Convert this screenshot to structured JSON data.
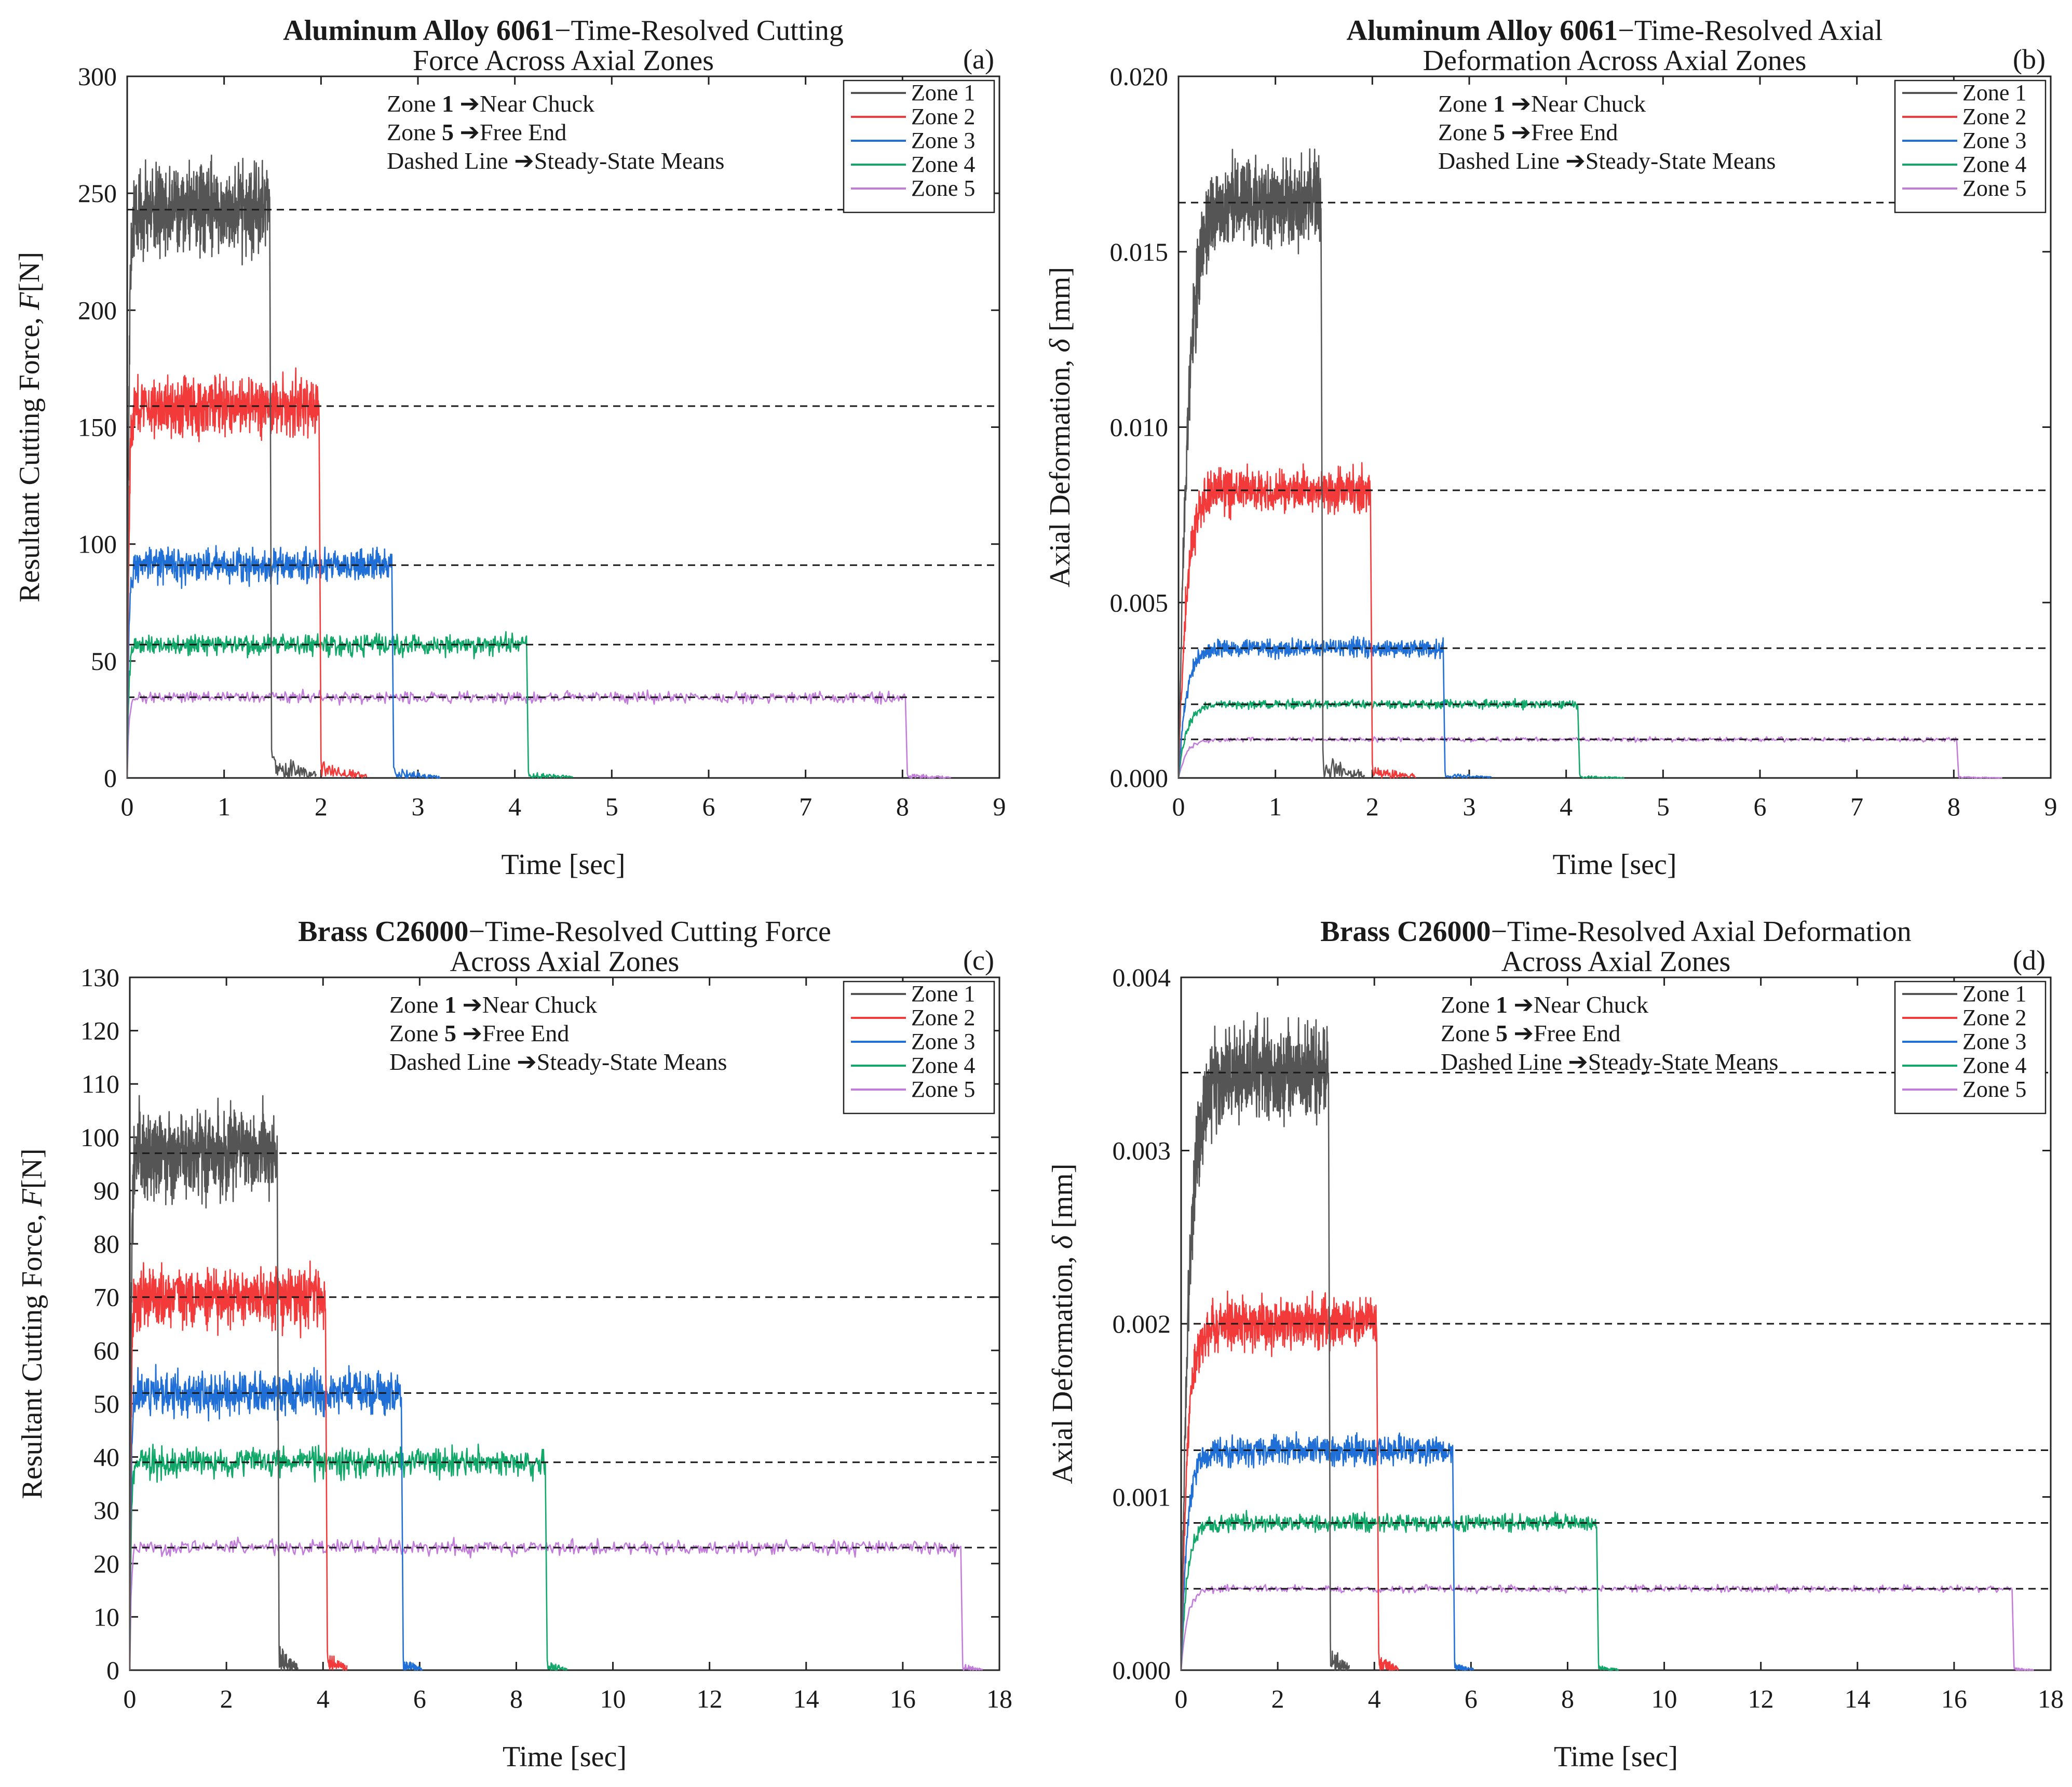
{
  "colors": {
    "zone1": "#555555",
    "zone2": "#f23a3a",
    "zone3": "#1f6fd6",
    "zone4": "#12a86a",
    "zone5": "#c27ddb",
    "dashed": "#1a1a1a"
  },
  "chart_data": [
    {
      "id": "a",
      "type": "line",
      "panel_label": "(a)",
      "title_bold": "Aluminum Alloy 6061",
      "title_rest_line1": "−Time-Resolved Cutting",
      "title_line2": "Force Across Axial Zones",
      "xlabel": "Time [sec]",
      "ylabel_prefix": "Resultant Cutting Force, ",
      "ylabel_symbol": "F",
      "ylabel_suffix": "[N]",
      "xlim": [
        0,
        9
      ],
      "ylim": [
        0,
        300
      ],
      "xticks": [
        0,
        1,
        2,
        3,
        4,
        5,
        6,
        7,
        8,
        9
      ],
      "yticks": [
        "0",
        "50",
        "100",
        "150",
        "200",
        "250",
        "300"
      ],
      "ytick_values": [
        0,
        50,
        100,
        150,
        200,
        250,
        300
      ],
      "annotations": [
        {
          "pre": "Zone ",
          "bold": "1",
          "post": " ➔Near Chuck"
        },
        {
          "pre": "Zone ",
          "bold": "5",
          "post": " ➔Free End"
        },
        {
          "pre": "Dashed Line ",
          "bold": "",
          "post": "➔Steady-State Means"
        }
      ],
      "legend": [
        "Zone 1",
        "Zone 2",
        "Zone 3",
        "Zone 4",
        "Zone 5"
      ],
      "legend_position": "top-right",
      "series": [
        {
          "name": "Zone 1",
          "mean": 243,
          "end_time": 1.47,
          "tail_end": 1.95,
          "noise": 9,
          "tail": 8,
          "rise": 0.05
        },
        {
          "name": "Zone 2",
          "mean": 159,
          "end_time": 1.98,
          "tail_end": 2.47,
          "noise": 6,
          "tail": 5,
          "rise": 0.05
        },
        {
          "name": "Zone 3",
          "mean": 91,
          "end_time": 2.73,
          "tail_end": 3.23,
          "noise": 3.5,
          "tail": 3,
          "rise": 0.05
        },
        {
          "name": "Zone 4",
          "mean": 57,
          "end_time": 4.12,
          "tail_end": 4.6,
          "noise": 2.2,
          "tail": 2,
          "rise": 0.05
        },
        {
          "name": "Zone 5",
          "mean": 34.5,
          "end_time": 8.03,
          "tail_end": 8.5,
          "noise": 1.2,
          "tail": 1.5,
          "rise": 0.05
        }
      ]
    },
    {
      "id": "b",
      "type": "line",
      "panel_label": "(b)",
      "title_bold": "Aluminum Alloy 6061",
      "title_rest_line1": "−Time-Resolved Axial",
      "title_line2": "Deformation Across Axial Zones",
      "xlabel": "Time [sec]",
      "ylabel_prefix": "Axial Deformation, ",
      "ylabel_symbol": "δ",
      "ylabel_suffix": " [mm]",
      "xlim": [
        0,
        9
      ],
      "ylim": [
        0,
        0.02
      ],
      "xticks": [
        0,
        1,
        2,
        3,
        4,
        5,
        6,
        7,
        8,
        9
      ],
      "yticks": [
        "0.000",
        "0.005",
        "0.010",
        "0.015",
        "0.020"
      ],
      "ytick_values": [
        0,
        0.005,
        0.01,
        0.015,
        0.02
      ],
      "annotations": [
        {
          "pre": "Zone ",
          "bold": "1",
          "post": " ➔Near Chuck"
        },
        {
          "pre": "Zone ",
          "bold": "5",
          "post": " ➔Free End"
        },
        {
          "pre": "Dashed Line ",
          "bold": "",
          "post": "➔Steady-State Means"
        }
      ],
      "legend": [
        "Zone 1",
        "Zone 2",
        "Zone 3",
        "Zone 4",
        "Zone 5"
      ],
      "legend_position": "top-right",
      "series": [
        {
          "name": "Zone 1",
          "mean": 0.0164,
          "end_time": 1.47,
          "tail_end": 1.92,
          "noise": 0.0006,
          "tail": 0.0005,
          "rise": 0.3
        },
        {
          "name": "Zone 2",
          "mean": 0.0082,
          "end_time": 1.98,
          "tail_end": 2.45,
          "noise": 0.0003,
          "tail": 0.0003,
          "rise": 0.25
        },
        {
          "name": "Zone 3",
          "mean": 0.0037,
          "end_time": 2.73,
          "tail_end": 3.23,
          "noise": 0.00012,
          "tail": 0.0001,
          "rise": 0.25
        },
        {
          "name": "Zone 4",
          "mean": 0.0021,
          "end_time": 4.12,
          "tail_end": 4.6,
          "noise": 6e-05,
          "tail": 5e-05,
          "rise": 0.25
        },
        {
          "name": "Zone 5",
          "mean": 0.0011,
          "end_time": 8.03,
          "tail_end": 8.5,
          "noise": 3e-05,
          "tail": 3e-05,
          "rise": 0.25
        }
      ]
    },
    {
      "id": "c",
      "type": "line",
      "panel_label": "(c)",
      "title_bold": "Brass C26000",
      "title_rest_line1": "−Time-Resolved Cutting Force",
      "title_line2": "Across Axial Zones",
      "xlabel": "Time [sec]",
      "ylabel_prefix": "Resultant Cutting Force, ",
      "ylabel_symbol": "F",
      "ylabel_suffix": "[N]",
      "xlim": [
        0,
        18
      ],
      "ylim": [
        0,
        130
      ],
      "xticks": [
        0,
        2,
        4,
        6,
        8,
        10,
        12,
        14,
        16,
        18
      ],
      "yticks": [
        "0",
        "10",
        "20",
        "30",
        "40",
        "50",
        "60",
        "70",
        "80",
        "90",
        "100",
        "110",
        "120",
        "130"
      ],
      "ytick_values": [
        0,
        10,
        20,
        30,
        40,
        50,
        60,
        70,
        80,
        90,
        100,
        110,
        120,
        130
      ],
      "annotations": [
        {
          "pre": "Zone ",
          "bold": "1",
          "post": " ➔Near Chuck"
        },
        {
          "pre": "Zone ",
          "bold": "5",
          "post": " ➔Free End"
        },
        {
          "pre": "Dashed Line ",
          "bold": "",
          "post": "➔Steady-State Means"
        }
      ],
      "legend": [
        "Zone 1",
        "Zone 2",
        "Zone 3",
        "Zone 4",
        "Zone 5"
      ],
      "legend_position": "top-right",
      "series": [
        {
          "name": "Zone 1",
          "mean": 97,
          "end_time": 3.05,
          "tail_end": 3.48,
          "noise": 3.8,
          "tail": 3.5,
          "rise": 0.08
        },
        {
          "name": "Zone 2",
          "mean": 70,
          "end_time": 4.05,
          "tail_end": 4.5,
          "noise": 2.8,
          "tail": 2.5,
          "rise": 0.08
        },
        {
          "name": "Zone 3",
          "mean": 52,
          "end_time": 5.62,
          "tail_end": 6.05,
          "noise": 2,
          "tail": 1.5,
          "rise": 0.08
        },
        {
          "name": "Zone 4",
          "mean": 39,
          "end_time": 8.6,
          "tail_end": 9.05,
          "noise": 1.4,
          "tail": 1.2,
          "rise": 0.08
        },
        {
          "name": "Zone 5",
          "mean": 23,
          "end_time": 17.2,
          "tail_end": 17.65,
          "noise": 0.7,
          "tail": 0.8,
          "rise": 0.08
        }
      ]
    },
    {
      "id": "d",
      "type": "line",
      "panel_label": "(d)",
      "title_bold": "Brass C26000",
      "title_rest_line1": "−Time-Resolved Axial Deformation",
      "title_line2": "Across Axial Zones",
      "xlabel": "Time [sec]",
      "ylabel_prefix": "Axial Deformation, ",
      "ylabel_symbol": "δ",
      "ylabel_suffix": " [mm]",
      "xlim": [
        0,
        18
      ],
      "ylim": [
        0,
        0.004
      ],
      "xticks": [
        0,
        2,
        4,
        6,
        8,
        10,
        12,
        14,
        16,
        18
      ],
      "yticks": [
        "0.000",
        "0.001",
        "0.002",
        "0.003",
        "0.004"
      ],
      "ytick_values": [
        0,
        0.001,
        0.002,
        0.003,
        0.004
      ],
      "annotations": [
        {
          "pre": "Zone ",
          "bold": "1",
          "post": " ➔Near Chuck"
        },
        {
          "pre": "Zone ",
          "bold": "5",
          "post": " ➔Free End"
        },
        {
          "pre": "Dashed Line ",
          "bold": "",
          "post": "➔Steady-State Means"
        }
      ],
      "legend": [
        "Zone 1",
        "Zone 2",
        "Zone 3",
        "Zone 4",
        "Zone 5"
      ],
      "legend_position": "top-right",
      "series": [
        {
          "name": "Zone 1",
          "mean": 0.00345,
          "end_time": 3.05,
          "tail_end": 3.48,
          "noise": 0.00013,
          "tail": 0.0001,
          "rise": 0.5
        },
        {
          "name": "Zone 2",
          "mean": 0.002,
          "end_time": 4.05,
          "tail_end": 4.5,
          "noise": 7e-05,
          "tail": 6e-05,
          "rise": 0.4
        },
        {
          "name": "Zone 3",
          "mean": 0.00127,
          "end_time": 5.62,
          "tail_end": 6.05,
          "noise": 4e-05,
          "tail": 3e-05,
          "rise": 0.4
        },
        {
          "name": "Zone 4",
          "mean": 0.00085,
          "end_time": 8.6,
          "tail_end": 9.05,
          "noise": 2.5e-05,
          "tail": 2e-05,
          "rise": 0.4
        },
        {
          "name": "Zone 5",
          "mean": 0.00047,
          "end_time": 17.2,
          "tail_end": 17.65,
          "noise": 1e-05,
          "tail": 1e-05,
          "rise": 0.4
        }
      ]
    }
  ]
}
